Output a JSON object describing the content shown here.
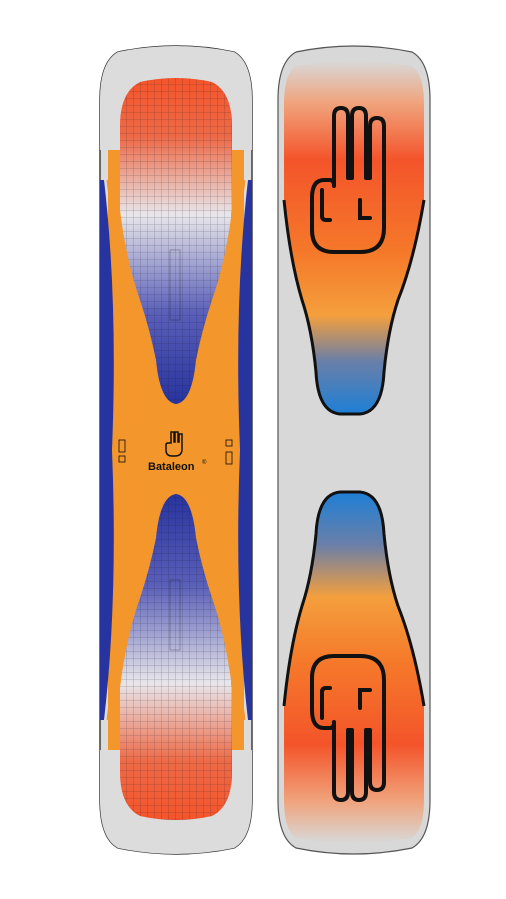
{
  "product": {
    "brand_text": "Bataleon",
    "trademark": "®",
    "small_text_left": "",
    "small_text_right": ""
  },
  "colors": {
    "background": "#ffffff",
    "board_grey": "#d8d8d8",
    "base_orange": "#f3962c",
    "deep_blue": "#27339e",
    "red_orange": "#f4542a",
    "sky_blue": "#1e7fd6",
    "outline": "#111111"
  },
  "icons": {
    "left_board_logo": "hand-logo-icon",
    "right_board_top": "hand-logo-icon",
    "right_board_bottom": "hand-logo-icon"
  }
}
